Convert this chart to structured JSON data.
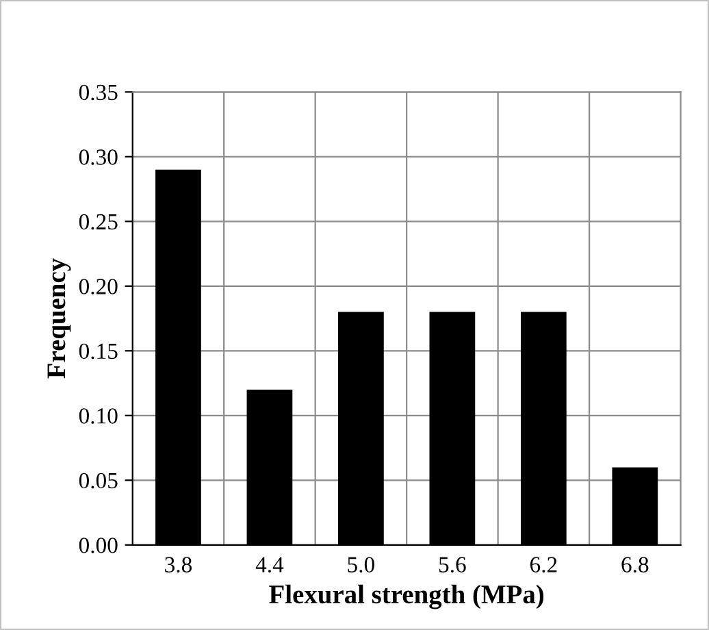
{
  "chart_data": {
    "type": "bar",
    "xlabel": "Flexural strength (MPa)",
    "ylabel": "Frequency",
    "categories": [
      "3.8",
      "4.4",
      "5.0",
      "5.6",
      "6.2",
      "6.8"
    ],
    "values": [
      0.29,
      0.12,
      0.18,
      0.18,
      0.18,
      0.06
    ],
    "color": "#000000",
    "ylim": [
      0,
      0.35
    ],
    "yticks": [
      {
        "value": 0,
        "label": "0.00"
      },
      {
        "value": 0.05,
        "label": "0.05"
      },
      {
        "value": 0.1,
        "label": "0.10"
      },
      {
        "value": 0.15,
        "label": "0.15"
      },
      {
        "value": 0.2,
        "label": "0.20"
      },
      {
        "value": 0.25,
        "label": "0.25"
      },
      {
        "value": 0.3,
        "label": "0.30"
      },
      {
        "value": 0.35,
        "label": "0.35"
      }
    ],
    "grid": true
  }
}
